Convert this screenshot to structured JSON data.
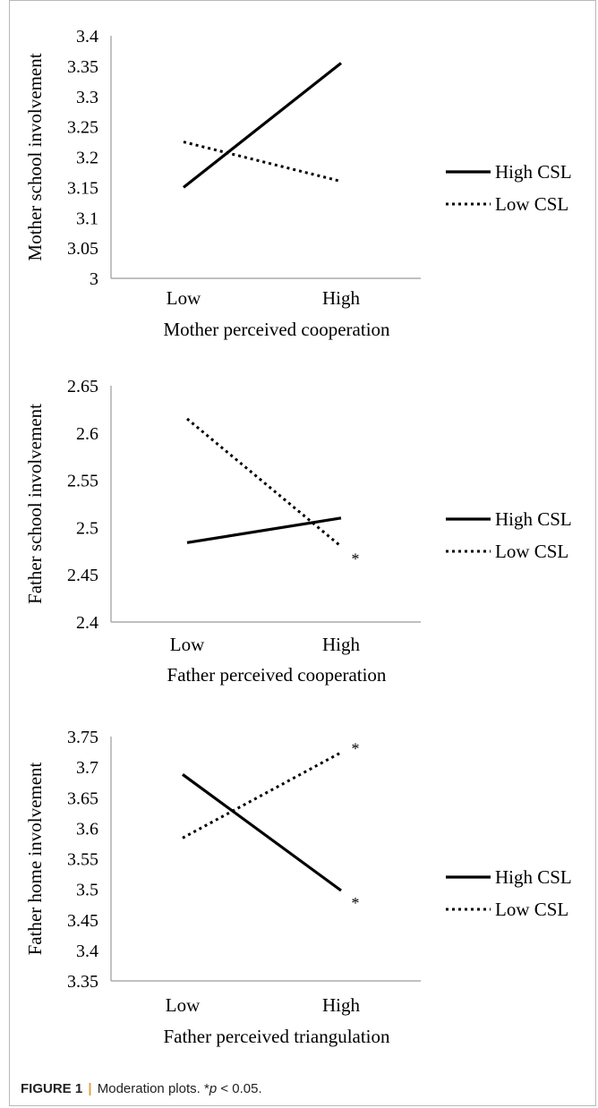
{
  "legend": {
    "high_label": "High CSL",
    "low_label": "Low CSL"
  },
  "caption": {
    "label": "FIGURE 1",
    "separator": "|",
    "text_before_p": "Moderation plots. *",
    "p_symbol": "p",
    "text_after_p": " < 0.05."
  },
  "chart_data": [
    {
      "type": "line",
      "title": "",
      "xlabel": "Mother perceived cooperation",
      "ylabel": "Mother school involvement",
      "categories": [
        "Low",
        "High"
      ],
      "ylim": [
        3,
        3.4
      ],
      "yticks": [
        "3.4",
        "3.35",
        "3.3",
        "3.25",
        "3.2",
        "3.15",
        "3.1",
        "3.05",
        "3"
      ],
      "legend_position": "right",
      "grid": false,
      "series": [
        {
          "name": "High CSL",
          "style": "solid",
          "values": [
            3.15,
            3.355
          ],
          "markers": [
            "",
            ""
          ]
        },
        {
          "name": "Low CSL",
          "style": "dotted",
          "values": [
            3.225,
            3.16
          ],
          "markers": [
            "",
            ""
          ]
        }
      ]
    },
    {
      "type": "line",
      "title": "",
      "xlabel": "Father perceived cooperation",
      "ylabel": "Father school involvement",
      "categories": [
        "Low",
        "High"
      ],
      "ylim": [
        2.4,
        2.65
      ],
      "yticks": [
        "2.65",
        "2.6",
        "2.55",
        "2.5",
        "2.45",
        "2.4"
      ],
      "legend_position": "right",
      "grid": false,
      "series": [
        {
          "name": "High CSL",
          "style": "solid",
          "values": [
            2.484,
            2.51
          ],
          "markers": [
            "",
            ""
          ]
        },
        {
          "name": "Low CSL",
          "style": "dotted",
          "values": [
            2.615,
            2.48
          ],
          "markers": [
            "",
            "*"
          ]
        }
      ]
    },
    {
      "type": "line",
      "title": "",
      "xlabel": "Father perceived triangulation",
      "ylabel": "Father home involvement",
      "categories": [
        "Low",
        "High"
      ],
      "ylim": [
        3.35,
        3.75
      ],
      "yticks": [
        "3.75",
        "3.7",
        "3.65",
        "3.6",
        "3.55",
        "3.5",
        "3.45",
        "3.4",
        "3.35"
      ],
      "legend_position": "right",
      "grid": false,
      "series": [
        {
          "name": "High CSL",
          "style": "solid",
          "values": [
            3.688,
            3.498
          ],
          "markers": [
            "",
            "*"
          ]
        },
        {
          "name": "Low CSL",
          "style": "dotted",
          "values": [
            3.584,
            3.724
          ],
          "markers": [
            "",
            "*"
          ]
        }
      ]
    }
  ]
}
